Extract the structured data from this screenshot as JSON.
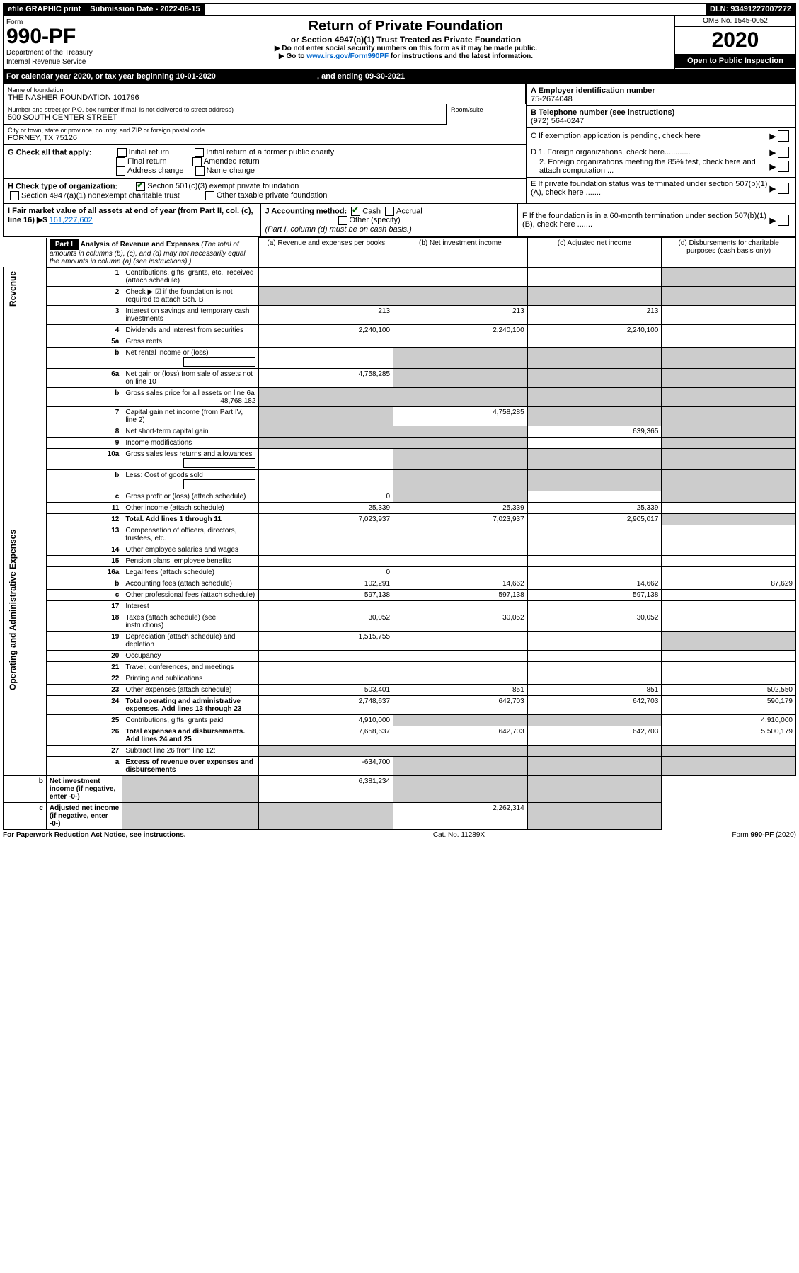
{
  "topbar": {
    "efile": "efile GRAPHIC print",
    "submission_label": "Submission Date - 2022-08-15",
    "dln": "DLN: 93491227007272"
  },
  "header": {
    "form_label": "Form",
    "form_number": "990-PF",
    "dept1": "Department of the Treasury",
    "dept2": "Internal Revenue Service",
    "title": "Return of Private Foundation",
    "subtitle": "or Section 4947(a)(1) Trust Treated as Private Foundation",
    "instr1": "▶ Do not enter social security numbers on this form as it may be made public.",
    "instr2_pre": "▶ Go to ",
    "instr2_link": "www.irs.gov/Form990PF",
    "instr2_post": " for instructions and the latest information.",
    "omb": "OMB No. 1545-0052",
    "year": "2020",
    "open": "Open to Public Inspection"
  },
  "calyear": {
    "text_pre": "For calendar year 2020, or tax year beginning ",
    "begin": "10-01-2020",
    "text_mid": " , and ending ",
    "end": "09-30-2021"
  },
  "info": {
    "name_label": "Name of foundation",
    "name": "THE NASHER FOUNDATION 101796",
    "addr_label": "Number and street (or P.O. box number if mail is not delivered to street address)",
    "addr": "500 SOUTH CENTER STREET",
    "room_label": "Room/suite",
    "city_label": "City or town, state or province, country, and ZIP or foreign postal code",
    "city": "FORNEY, TX  75126",
    "a_label": "A Employer identification number",
    "a_value": "75-2674048",
    "b_label": "B Telephone number (see instructions)",
    "b_value": "(972) 564-0247",
    "c_label": "C If exemption application is pending, check here",
    "d1_label": "D 1. Foreign organizations, check here............",
    "d2_label": "2. Foreign organizations meeting the 85% test, check here and attach computation ...",
    "e_label": "E  If private foundation status was terminated under section 507(b)(1)(A), check here .......",
    "f_label": "F  If the foundation is in a 60-month termination under section 507(b)(1)(B), check here .......",
    "g_label": "G Check all that apply:",
    "g_initial": "Initial return",
    "g_initial_former": "Initial return of a former public charity",
    "g_final": "Final return",
    "g_amended": "Amended return",
    "g_address": "Address change",
    "g_name": "Name change",
    "h_label": "H Check type of organization:",
    "h_501c3": "Section 501(c)(3) exempt private foundation",
    "h_4947": "Section 4947(a)(1) nonexempt charitable trust",
    "h_other": "Other taxable private foundation",
    "i_label": "I Fair market value of all assets at end of year (from Part II, col. (c), line 16) ▶$",
    "i_value": "161,227,602",
    "j_label": "J Accounting method:",
    "j_cash": "Cash",
    "j_accrual": "Accrual",
    "j_other": "Other (specify)",
    "j_note": "(Part I, column (d) must be on cash basis.)"
  },
  "part1": {
    "header": "Part I",
    "title": "Analysis of Revenue and Expenses",
    "sub": "(The total of amounts in columns (b), (c), and (d) may not necessarily equal the amounts in column (a) (see instructions).)",
    "cols": {
      "a": "(a)    Revenue and expenses per books",
      "b": "(b)    Net investment income",
      "c": "(c)    Adjusted net income",
      "d": "(d)    Disbursements for charitable purposes (cash basis only)"
    },
    "vlabels": {
      "rev": "Revenue",
      "exp": "Operating and Administrative Expenses"
    },
    "lines": [
      {
        "n": "1",
        "desc": "Contributions, gifts, grants, etc., received (attach schedule)",
        "a": "",
        "b": "",
        "c": "",
        "d": "",
        "dshade": true
      },
      {
        "n": "2",
        "desc": "Check ▶ ☑ if the foundation is not required to attach Sch. B",
        "a": "",
        "b": "",
        "c": "",
        "d": "",
        "allshade": true,
        "bold_not": true
      },
      {
        "n": "3",
        "desc": "Interest on savings and temporary cash investments",
        "a": "213",
        "b": "213",
        "c": "213",
        "d": ""
      },
      {
        "n": "4",
        "desc": "Dividends and interest from securities",
        "a": "2,240,100",
        "b": "2,240,100",
        "c": "2,240,100",
        "d": ""
      },
      {
        "n": "5a",
        "desc": "Gross rents",
        "a": "",
        "b": "",
        "c": "",
        "d": ""
      },
      {
        "n": "b",
        "desc": "Net rental income or (loss)",
        "a": "",
        "b": "",
        "c": "",
        "d": "",
        "bcd_shade": true,
        "inline_box": true
      },
      {
        "n": "6a",
        "desc": "Net gain or (loss) from sale of assets not on line 10",
        "a": "4,758,285",
        "b": "",
        "c": "",
        "d": "",
        "bcd_shade": true
      },
      {
        "n": "b",
        "desc": "Gross sales price for all assets on line 6a",
        "a": "",
        "b": "",
        "c": "",
        "d": "",
        "allshade": true,
        "inline_val": "48,768,182"
      },
      {
        "n": "7",
        "desc": "Capital gain net income (from Part IV, line 2)",
        "a": "",
        "b": "4,758,285",
        "c": "",
        "d": "",
        "a_shade": true,
        "cd_shade": true
      },
      {
        "n": "8",
        "desc": "Net short-term capital gain",
        "a": "",
        "b": "",
        "c": "639,365",
        "d": "",
        "ab_shade": true,
        "d_shade": true
      },
      {
        "n": "9",
        "desc": "Income modifications",
        "a": "",
        "b": "",
        "c": "",
        "d": "",
        "ab_shade": true,
        "d_shade": true
      },
      {
        "n": "10a",
        "desc": "Gross sales less returns and allowances",
        "a": "",
        "b": "",
        "c": "",
        "d": "",
        "bcd_shade": true,
        "inline_box": true
      },
      {
        "n": "b",
        "desc": "Less: Cost of goods sold",
        "a": "",
        "b": "",
        "c": "",
        "d": "",
        "bcd_shade": true,
        "inline_box": true
      },
      {
        "n": "c",
        "desc": "Gross profit or (loss) (attach schedule)",
        "a": "0",
        "b": "",
        "c": "",
        "d": "",
        "b_shade": true,
        "d_shade": true
      },
      {
        "n": "11",
        "desc": "Other income (attach schedule)",
        "a": "25,339",
        "b": "25,339",
        "c": "25,339",
        "d": ""
      },
      {
        "n": "12",
        "desc": "Total. Add lines 1 through 11",
        "a": "7,023,937",
        "b": "7,023,937",
        "c": "2,905,017",
        "d": "",
        "bold": true,
        "d_shade": true
      },
      {
        "n": "13",
        "desc": "Compensation of officers, directors, trustees, etc.",
        "a": "",
        "b": "",
        "c": "",
        "d": ""
      },
      {
        "n": "14",
        "desc": "Other employee salaries and wages",
        "a": "",
        "b": "",
        "c": "",
        "d": ""
      },
      {
        "n": "15",
        "desc": "Pension plans, employee benefits",
        "a": "",
        "b": "",
        "c": "",
        "d": ""
      },
      {
        "n": "16a",
        "desc": "Legal fees (attach schedule)",
        "a": "0",
        "b": "",
        "c": "",
        "d": ""
      },
      {
        "n": "b",
        "desc": "Accounting fees (attach schedule)",
        "a": "102,291",
        "b": "14,662",
        "c": "14,662",
        "d": "87,629"
      },
      {
        "n": "c",
        "desc": "Other professional fees (attach schedule)",
        "a": "597,138",
        "b": "597,138",
        "c": "597,138",
        "d": ""
      },
      {
        "n": "17",
        "desc": "Interest",
        "a": "",
        "b": "",
        "c": "",
        "d": ""
      },
      {
        "n": "18",
        "desc": "Taxes (attach schedule) (see instructions)",
        "a": "30,052",
        "b": "30,052",
        "c": "30,052",
        "d": ""
      },
      {
        "n": "19",
        "desc": "Depreciation (attach schedule) and depletion",
        "a": "1,515,755",
        "b": "",
        "c": "",
        "d": "",
        "d_shade": true
      },
      {
        "n": "20",
        "desc": "Occupancy",
        "a": "",
        "b": "",
        "c": "",
        "d": ""
      },
      {
        "n": "21",
        "desc": "Travel, conferences, and meetings",
        "a": "",
        "b": "",
        "c": "",
        "d": ""
      },
      {
        "n": "22",
        "desc": "Printing and publications",
        "a": "",
        "b": "",
        "c": "",
        "d": ""
      },
      {
        "n": "23",
        "desc": "Other expenses (attach schedule)",
        "a": "503,401",
        "b": "851",
        "c": "851",
        "d": "502,550"
      },
      {
        "n": "24",
        "desc": "Total operating and administrative expenses. Add lines 13 through 23",
        "a": "2,748,637",
        "b": "642,703",
        "c": "642,703",
        "d": "590,179",
        "bold": true
      },
      {
        "n": "25",
        "desc": "Contributions, gifts, grants paid",
        "a": "4,910,000",
        "b": "",
        "c": "",
        "d": "4,910,000",
        "bc_shade": true
      },
      {
        "n": "26",
        "desc": "Total expenses and disbursements. Add lines 24 and 25",
        "a": "7,658,637",
        "b": "642,703",
        "c": "642,703",
        "d": "5,500,179",
        "bold": true
      },
      {
        "n": "27",
        "desc": "Subtract line 26 from line 12:",
        "a": "",
        "b": "",
        "c": "",
        "d": "",
        "allshade": true
      },
      {
        "n": "a",
        "desc": "Excess of revenue over expenses and disbursements",
        "a": "-634,700",
        "b": "",
        "c": "",
        "d": "",
        "bold": true,
        "bcd_shade": true
      },
      {
        "n": "b",
        "desc": "Net investment income (if negative, enter -0-)",
        "a": "",
        "b": "6,381,234",
        "c": "",
        "d": "",
        "bold": true,
        "a_shade": true,
        "cd_shade": true
      },
      {
        "n": "c",
        "desc": "Adjusted net income (if negative, enter -0-)",
        "a": "",
        "b": "",
        "c": "2,262,314",
        "d": "",
        "bold": true,
        "ab_shade": true,
        "d_shade": true
      }
    ]
  },
  "footer": {
    "left": "For Paperwork Reduction Act Notice, see instructions.",
    "mid": "Cat. No. 11289X",
    "right": "Form 990-PF (2020)"
  }
}
